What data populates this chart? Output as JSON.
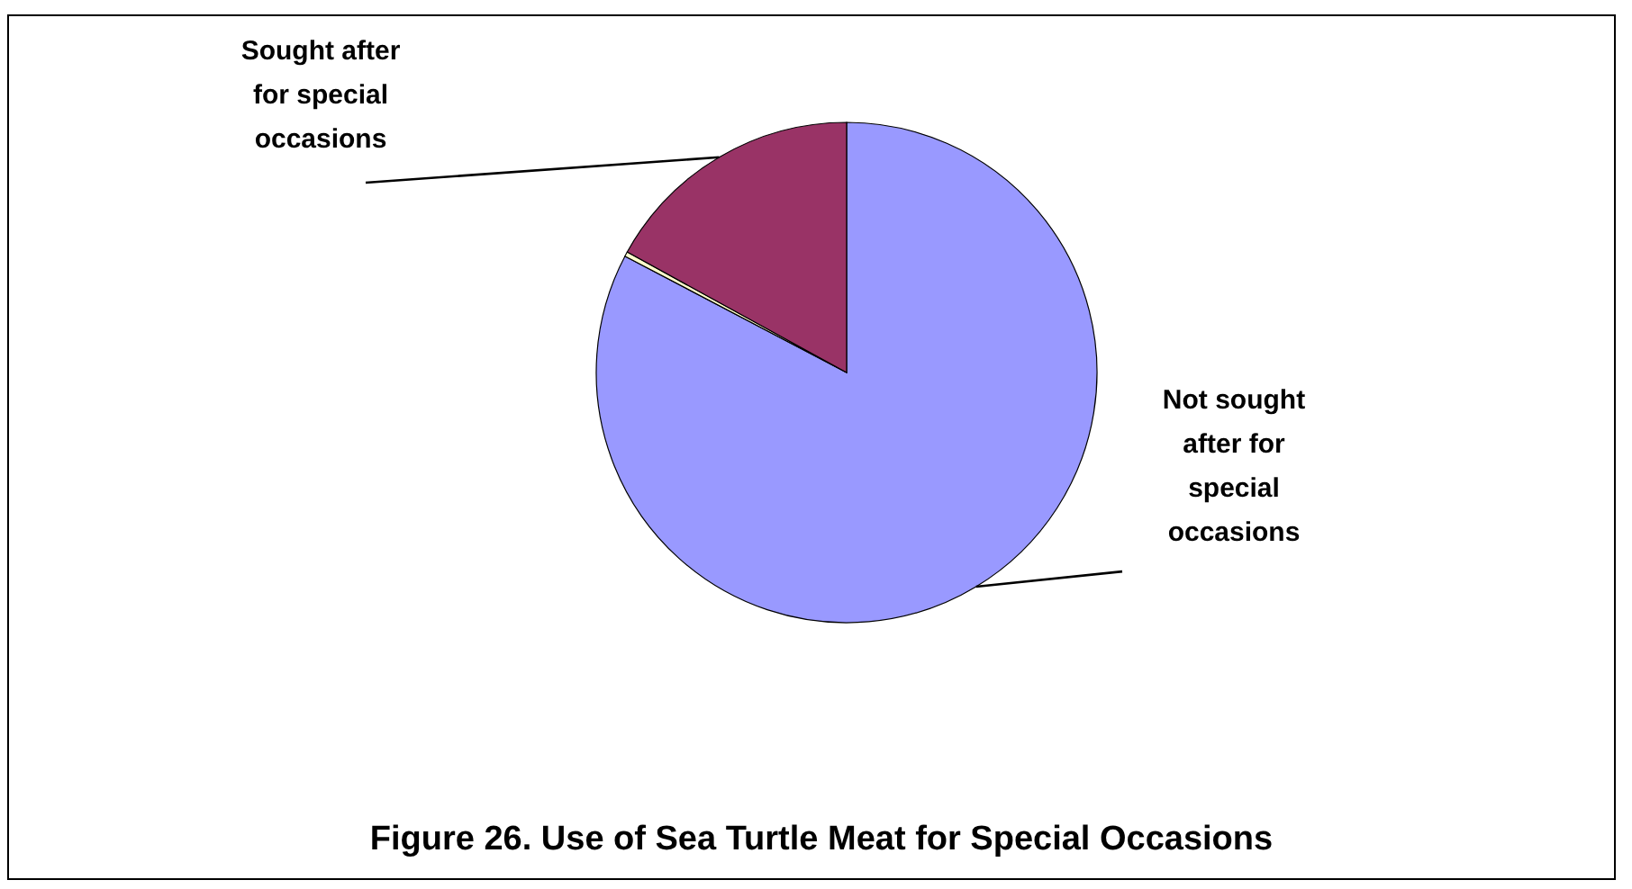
{
  "chart_data": {
    "type": "pie",
    "title": "Figure 26. Use of Sea Turtle Meat for Special Occasions",
    "categories": [
      "Not sought after for special occasions",
      null,
      "Sought after for special occasions"
    ],
    "values": [
      82.7,
      0.3,
      17
    ],
    "colors": [
      "#9999ff",
      "#ffffcc",
      "#993366"
    ]
  }
}
